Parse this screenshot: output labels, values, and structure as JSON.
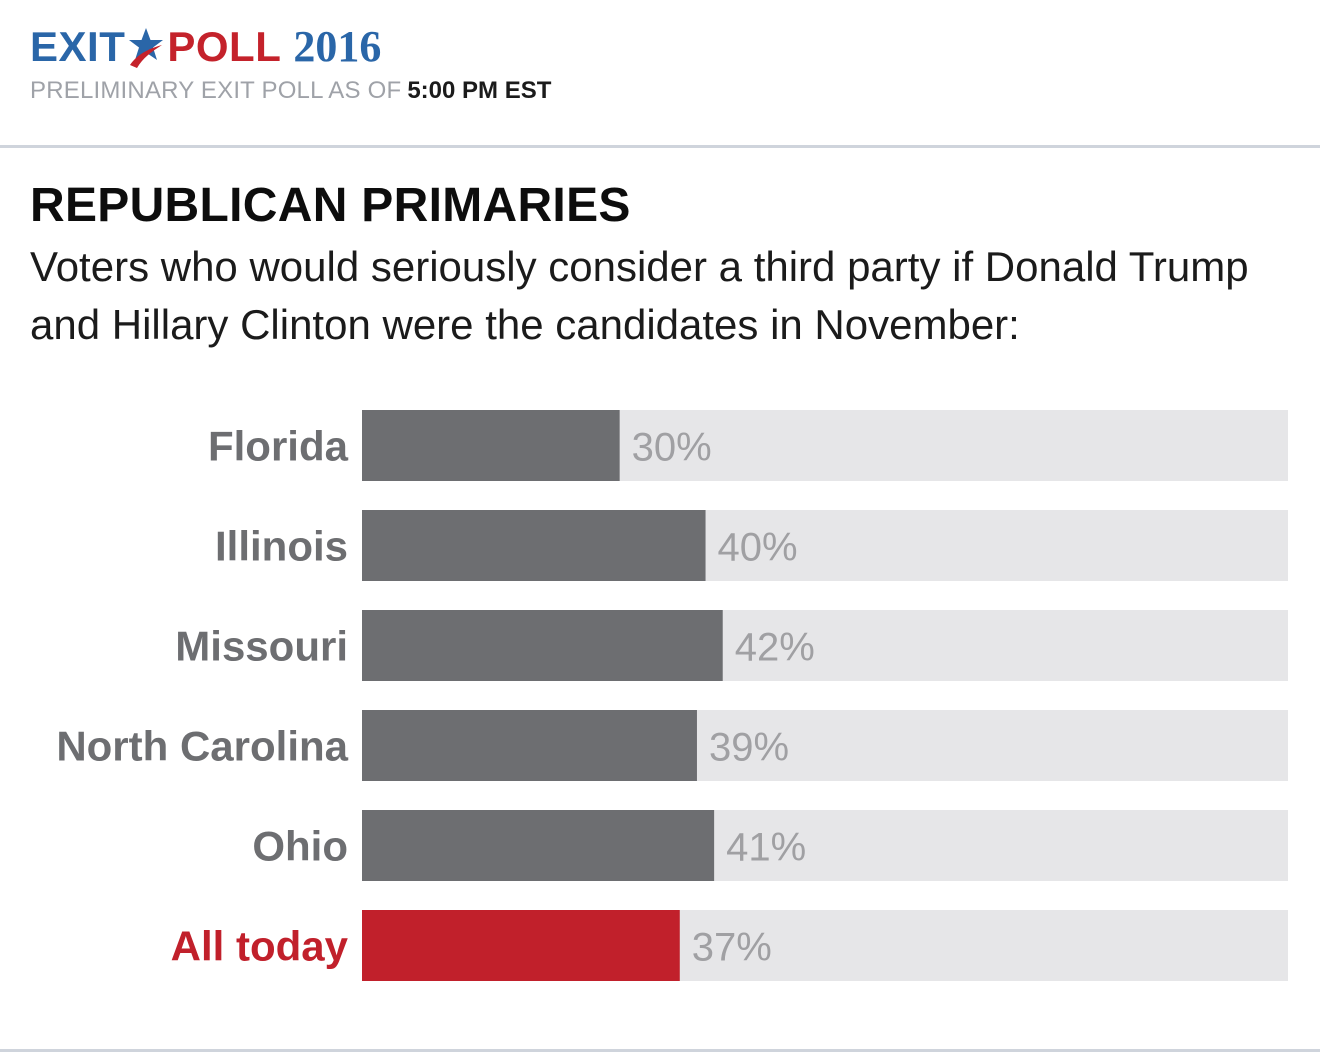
{
  "header": {
    "logo_exit": "EXIT",
    "logo_poll": "POLL",
    "logo_year": "2016",
    "subline_prefix": "PRELIMINARY EXIT POLL AS OF",
    "subline_time": "5:00 PM EST"
  },
  "colors": {
    "brand_blue": "#2a66a8",
    "brand_red": "#c4222b",
    "bar_fill": "#6d6e71",
    "bar_highlight": "#c1202b",
    "bar_track": "#e6e6e8",
    "category_text": "#6d6e71",
    "highlight_text": "#c1202b"
  },
  "chart_data": {
    "type": "bar",
    "orientation": "horizontal",
    "title": "REPUBLICAN PRIMARIES",
    "subtitle": "Voters who would seriously consider a third party if Donald Trump and Hillary Clinton were the candidates in November:",
    "categories": [
      "Florida",
      "Illinois",
      "Missouri",
      "North Carolina",
      "Ohio",
      "All today"
    ],
    "values": [
      30,
      40,
      42,
      39,
      41,
      37
    ],
    "value_labels": [
      "30%",
      "40%",
      "42%",
      "39%",
      "41%",
      "37%"
    ],
    "highlight": [
      "All today"
    ],
    "xlim": [
      0,
      100
    ],
    "grid": false,
    "legend": false
  }
}
